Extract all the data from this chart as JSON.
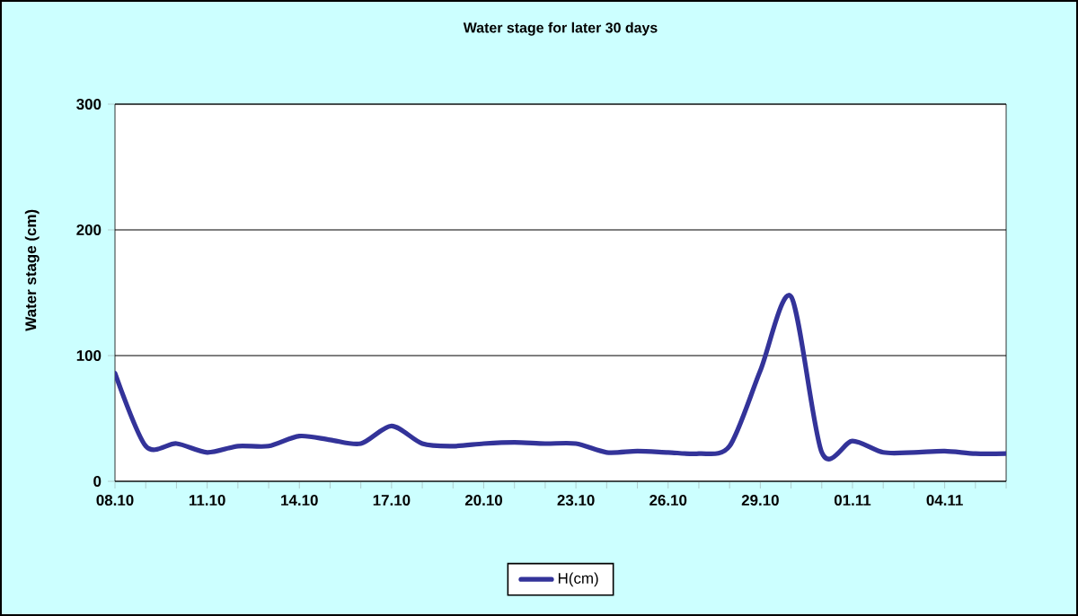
{
  "chart_data": {
    "type": "line",
    "title": "Water stage for later 30 days",
    "ylabel": "Water stage (cm)",
    "categories": [
      "08.10",
      null,
      null,
      "11.10",
      null,
      null,
      "14.10",
      null,
      null,
      "17.10",
      null,
      null,
      "20.10",
      null,
      null,
      "23.10",
      null,
      null,
      "26.10",
      null,
      null,
      "29.10",
      null,
      null,
      "01.11",
      null,
      null,
      "04.11",
      null,
      null
    ],
    "series": [
      {
        "name": "H(cm)",
        "color": "#333399",
        "values": [
          86,
          28,
          30,
          23,
          28,
          28,
          36,
          33,
          30,
          44,
          30,
          28,
          30,
          31,
          30,
          30,
          23,
          24,
          23,
          22,
          28,
          88,
          147,
          23,
          32,
          23,
          23,
          24,
          22,
          22
        ]
      }
    ],
    "ylim": [
      0,
      300
    ],
    "yticks": [
      0,
      100,
      200,
      300
    ],
    "grid": "y",
    "legend": "bottom",
    "marker": "none",
    "line_style": "solid"
  }
}
